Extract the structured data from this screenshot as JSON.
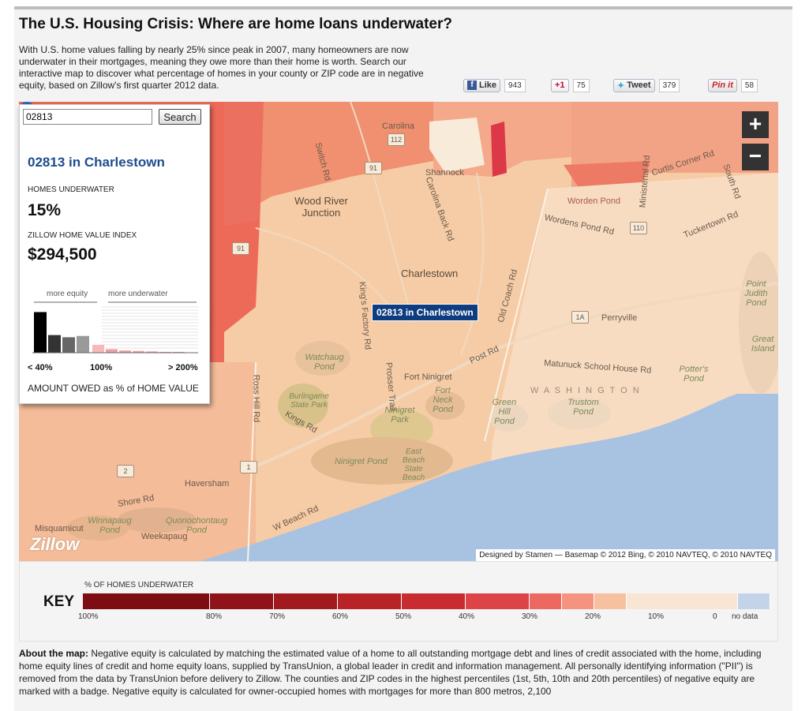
{
  "header": {
    "title": "The U.S. Housing Crisis: Where are home loans underwater?",
    "intro": "With U.S. home values falling by nearly 25% since peak in 2007, many homeowners are now underwater in their mortgages, meaning they owe more than their home is worth. Search our interactive map to discover what percentage of homes in your county or ZIP code are in negative equity, based on Zillow's first quarter 2012 data."
  },
  "social": {
    "facebook": {
      "label": "Like",
      "count": "943",
      "icon": "f"
    },
    "gplus": {
      "label": "+1",
      "count": "75"
    },
    "twitter": {
      "label": "Tweet",
      "count": "379"
    },
    "pinterest": {
      "label": "Pin it",
      "count": "58"
    }
  },
  "panel": {
    "search_value": "02813",
    "search_button": "Search",
    "title": "02813 in Charlestown",
    "underwater_label": "HOMES UNDERWATER",
    "underwater_value": "15%",
    "zhvi_label": "ZILLOW HOME VALUE INDEX",
    "zhvi_value": "$294,500",
    "histogram": {
      "left_label": "more equity",
      "right_label": "more underwater",
      "bars_equity": [
        0.92,
        0.4,
        0.35,
        0.38
      ],
      "bars_underwater": [
        0.18,
        0.08,
        0.05,
        0.04,
        0.03,
        0.02,
        0.02
      ]
    },
    "axis_left": "< 40%",
    "axis_mid": "100%",
    "axis_right": "> 200%",
    "caption": "AMOUNT OWED as % of HOME VALUE"
  },
  "map": {
    "marker_label": "02813 in Charlestown",
    "zoom_in": "+",
    "zoom_out": "−",
    "logo": "Zillow",
    "credits": "Designed by Stamen — Basemap © 2012 Bing, © 2010 NAVTEQ, © 2010 NAVTEQ",
    "labels": {
      "charlestown": "Charlestown",
      "wood_river": "Wood River Junction",
      "shannock": "Shannock",
      "carolina": "Carolina",
      "perryville": "Perryville",
      "fort_ninigret": "Fort Ninigret",
      "haversham": "Haversham",
      "weekapaug": "Weekapaug",
      "misquamicut": "Misquamicut",
      "post_rd": "Post Rd",
      "worden_pond": "Worden Pond",
      "wordens_pond_rd": "Wordens Pond Rd",
      "tuckertown": "Tuckertown Rd",
      "matunuck": "Matunuck School House Rd",
      "washington": "W A S H I N G T O N",
      "watchaug": "Watchaug Pond",
      "burlingame": "Burlingame State Park",
      "ninigret_park": "Ninigret Park",
      "ninigret_pond": "Ninigret Pond",
      "east_beach": "East Beach State Beach",
      "fort_neck": "Fort Neck Pond",
      "green_hill": "Green Hill Pond",
      "trustom": "Trustom Pond",
      "potters": "Potter's Pond",
      "winnapaug": "Winnapaug Pond",
      "quonochontaug": "Quonochontaug Pond",
      "shore_rd": "Shore Rd",
      "ross_hill": "Ross Hill Rd",
      "kings_factory": "King's Factory Rd",
      "old_coach": "Old Coach Rd",
      "carolina_back": "Carolina Back Rd",
      "switch_rd": "Switch Rd",
      "curtis_corner": "Curtis Corner Rd",
      "south_rd": "South Rd",
      "ministerial": "Ministerial Rd",
      "point_judith": "Point Judith Pond",
      "great_island": "Great Island",
      "prosser": "Prosser Trail",
      "w_beach": "W Beach Rd",
      "kings_rd": "Kings Rd",
      "r112": "112",
      "r91a": "91",
      "r91b": "91",
      "r110": "110",
      "r1a": "1A",
      "r1": "1",
      "r2": "2"
    }
  },
  "key": {
    "title": "KEY",
    "subtitle": "% OF HOMES UNDERWATER",
    "swatches": [
      {
        "color": "#7d0d12",
        "width": 160
      },
      {
        "color": "#8f141a",
        "width": 80
      },
      {
        "color": "#a01a1e",
        "width": 80
      },
      {
        "color": "#b82328",
        "width": 80
      },
      {
        "color": "#c92c30",
        "width": 80
      },
      {
        "color": "#dd4448",
        "width": 80
      },
      {
        "color": "#ec6860",
        "width": 40
      },
      {
        "color": "#f49480",
        "width": 40
      },
      {
        "color": "#f7c09e",
        "width": 40
      },
      {
        "color": "#f9e5d3",
        "width": 140
      },
      {
        "color": "#c4d4e8",
        "width": 40
      }
    ],
    "ticks": {
      "t100": "100%",
      "t80": "80%",
      "t70": "70%",
      "t60": "60%",
      "t50": "50%",
      "t40": "40%",
      "t30": "30%",
      "t20": "20%",
      "t10": "10%",
      "t0": "0",
      "nodata": "no data"
    }
  },
  "about": {
    "lead": "About the map:",
    "text": " Negative equity is calculated by matching the estimated value of a home to all outstanding mortgage debt and lines of credit associated with the home, including home equity lines of credit and home equity loans, supplied by TransUnion, a global leader in credit and information management. All personally identifying information (\"PII\") is removed from the data by TransUnion before delivery to Zillow. The counties and ZIP codes in the highest percentiles (1st, 5th, 10th and 20th percentiles) of negative equity are marked with a badge. Negative equity is calculated for owner-occupied homes with mortgages for more than 800 metros, 2,100"
  }
}
